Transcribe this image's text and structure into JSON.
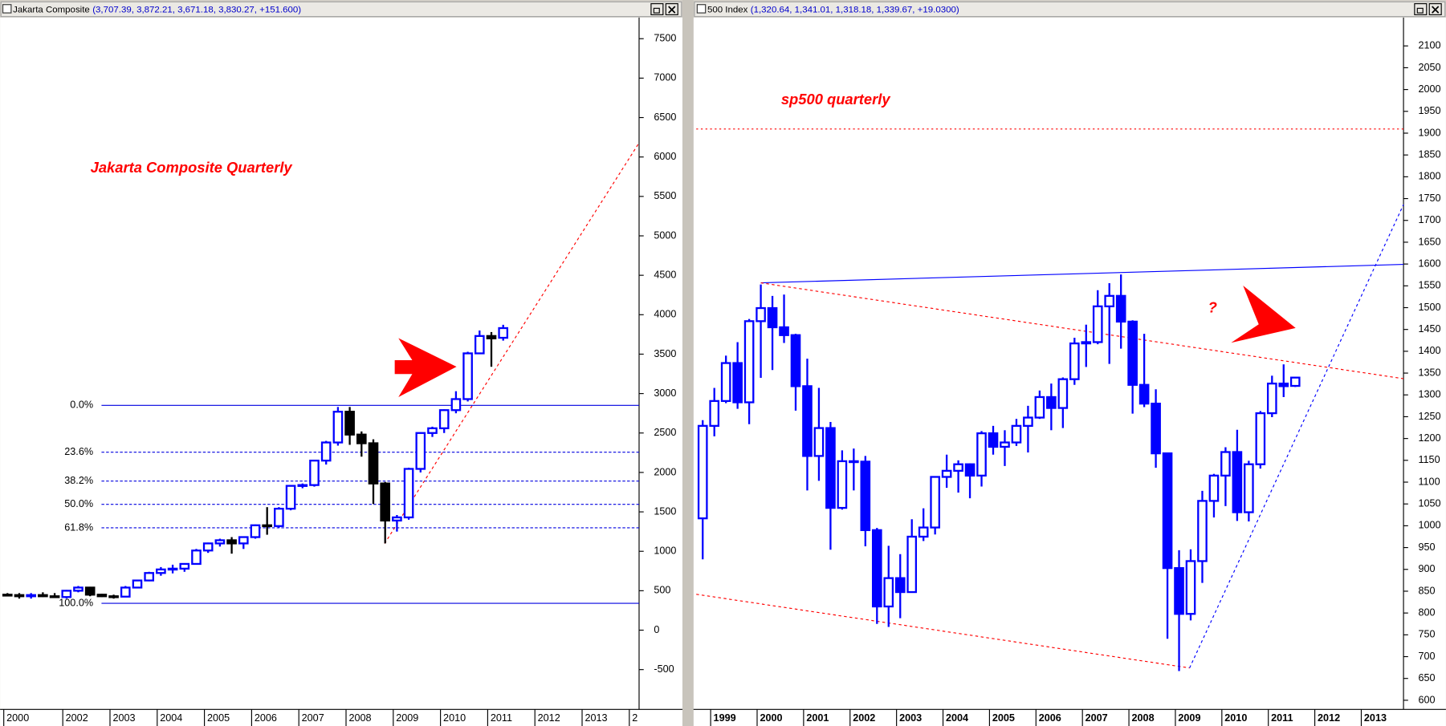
{
  "chart_data": [
    {
      "type": "candlestick",
      "name": "Jakarta Composite",
      "quote": "(3,707.39, 3,872.21, 3,671.18, 3,830.27, +151.600)",
      "annotations": [
        "Jakarta Composite Quarterly"
      ],
      "categories": [
        "2000",
        null,
        null,
        null,
        null,
        "2002",
        null,
        null,
        null,
        "2003",
        null,
        null,
        null,
        "2004",
        null,
        null,
        null,
        "2005",
        null,
        null,
        null,
        "2006",
        null,
        null,
        null,
        "2007",
        null,
        null,
        null,
        "2008",
        null,
        null,
        null,
        "2009",
        null,
        null,
        null,
        "2010",
        null,
        null,
        null,
        "2011",
        null,
        null,
        null,
        "2012",
        null,
        null,
        null,
        "2013",
        null,
        null,
        null,
        "2"
      ],
      "open": [
        450,
        445,
        430,
        445,
        430,
        420,
        500,
        540,
        450,
        430,
        425,
        540,
        630,
        725,
        770,
        780,
        840,
        1010,
        1100,
        1140,
        1100,
        1180,
        1330,
        1320,
        1540,
        1830,
        1840,
        2150,
        2380,
        2770,
        2480,
        2370,
        1860,
        1390,
        1430,
        2045,
        2500,
        2560,
        2790,
        2930,
        3510,
        3730,
        3707.39,
        null,
        null,
        null,
        null,
        null,
        null,
        null,
        null,
        null,
        null,
        null
      ],
      "high": [
        470,
        470,
        470,
        480,
        470,
        510,
        560,
        550,
        460,
        450,
        560,
        640,
        740,
        800,
        830,
        850,
        1030,
        1110,
        1160,
        1180,
        1190,
        1340,
        1560,
        1560,
        1840,
        1860,
        2160,
        2400,
        2830,
        2830,
        2520,
        2420,
        1880,
        1460,
        2060,
        2510,
        2580,
        2800,
        3030,
        3530,
        3800,
        3780,
        3872.21,
        null,
        null,
        null,
        null,
        null,
        null,
        null,
        null,
        null,
        null,
        null
      ],
      "low": [
        430,
        400,
        400,
        420,
        410,
        400,
        480,
        430,
        420,
        400,
        420,
        530,
        620,
        690,
        720,
        740,
        830,
        980,
        1060,
        970,
        1030,
        1160,
        1210,
        1300,
        1520,
        1800,
        1820,
        2100,
        2340,
        2350,
        2200,
        1600,
        1100,
        1250,
        1400,
        2000,
        2450,
        2500,
        2750,
        2900,
        3500,
        3340,
        3671.18,
        null,
        null,
        null,
        null,
        null,
        null,
        null,
        null,
        null,
        null,
        null
      ],
      "close": [
        445,
        430,
        445,
        430,
        420,
        500,
        540,
        450,
        430,
        425,
        540,
        630,
        725,
        770,
        780,
        840,
        1010,
        1100,
        1140,
        1100,
        1180,
        1330,
        1320,
        1540,
        1830,
        1840,
        2150,
        2380,
        2770,
        2480,
        2370,
        1860,
        1390,
        1430,
        2045,
        2500,
        2560,
        2790,
        2930,
        3510,
        3730,
        3700,
        3830.27,
        null,
        null,
        null,
        null,
        null,
        null,
        null,
        null,
        null,
        null,
        null
      ],
      "up_fill": "#ffffff",
      "up_stroke": "#0000ff",
      "down_fill": "#000000",
      "down_stroke": "#000000",
      "ylim": [
        -1005,
        7757
      ],
      "yticks": [
        7500,
        7000,
        6500,
        6000,
        5500,
        5000,
        4500,
        4000,
        3500,
        3000,
        2500,
        2000,
        1500,
        1000,
        500,
        0,
        -500
      ],
      "fib_levels": [
        {
          "name": "0.0%",
          "value": 2850,
          "style": "solid"
        },
        {
          "name": "23.6%",
          "value": 2257,
          "style": "dashed"
        },
        {
          "name": "38.2%",
          "value": 1890,
          "style": "dashed"
        },
        {
          "name": "50.0%",
          "value": 1595,
          "style": "dashed"
        },
        {
          "name": "61.8%",
          "value": 1298,
          "style": "dashed"
        },
        {
          "name": "100.0%",
          "value": 340,
          "style": "solid"
        }
      ],
      "fib_color": "#0000e0"
    },
    {
      "type": "candlestick",
      "name": "500 Index",
      "quote": "(1,320.64, 1,341.01, 1,318.18, 1,339.67, +19.0300)",
      "annotations": [
        "sp500 quarterly",
        "?"
      ],
      "categories": [
        null,
        "1999",
        null,
        null,
        null,
        "2000",
        null,
        null,
        null,
        "2001",
        null,
        null,
        null,
        "2002",
        null,
        null,
        null,
        "2003",
        null,
        null,
        null,
        "2004",
        null,
        null,
        null,
        "2005",
        null,
        null,
        null,
        "2006",
        null,
        null,
        null,
        "2007",
        null,
        null,
        null,
        "2008",
        null,
        null,
        null,
        "2009",
        null,
        null,
        null,
        "2010",
        null,
        null,
        null,
        "2011",
        null,
        null,
        null,
        "2012",
        null,
        null,
        null,
        "2013",
        null,
        null
      ],
      "open": [
        1017,
        1229,
        1286,
        1373,
        1283,
        1469,
        1499,
        1455,
        1437,
        1320,
        1160,
        1224,
        1041,
        1148,
        1147,
        990,
        815,
        880,
        848,
        975,
        996,
        1112,
        1126,
        1141,
        1115,
        1212,
        1181,
        1191,
        1229,
        1248,
        1295,
        1270,
        1336,
        1418,
        1421,
        1503,
        1527,
        1468,
        1323,
        1280,
        1166,
        903,
        798,
        919,
        1057,
        1115,
        1169,
        1031,
        1141,
        1258,
        1326,
        1320.64,
        null,
        null,
        null,
        null,
        null,
        null,
        null,
        null
      ],
      "high": [
        1242,
        1316,
        1390,
        1421,
        1474,
        1553,
        1527,
        1530,
        1440,
        1383,
        1316,
        1238,
        1173,
        1177,
        1160,
        995,
        954,
        935,
        1015,
        1040,
        1112,
        1163,
        1150,
        1143,
        1217,
        1229,
        1219,
        1245,
        1275,
        1310,
        1326,
        1340,
        1431,
        1461,
        1540,
        1556,
        1576,
        1471,
        1440,
        1313,
        1167,
        944,
        946,
        1080,
        1119,
        1180,
        1220,
        1149,
        1263,
        1344,
        1370,
        1341.01,
        null,
        null,
        null,
        null,
        null,
        null,
        null,
        null
      ],
      "low": [
        923,
        1205,
        1281,
        1268,
        1233,
        1339,
        1357,
        1419,
        1264,
        1081,
        1103,
        945,
        1037,
        1081,
        953,
        775,
        768,
        788,
        848,
        965,
        980,
        1087,
        1076,
        1063,
        1090,
        1163,
        1137,
        1183,
        1168,
        1245,
        1219,
        1224,
        1323,
        1364,
        1416,
        1371,
        1406,
        1257,
        1272,
        1133,
        741,
        667,
        783,
        869,
        1019,
        1045,
        1011,
        1010,
        1131,
        1249,
        1295,
        1318.18,
        null,
        null,
        null,
        null,
        null,
        null,
        null,
        null
      ],
      "close": [
        1229,
        1286,
        1373,
        1283,
        1469,
        1499,
        1455,
        1437,
        1320,
        1160,
        1224,
        1041,
        1148,
        1147,
        990,
        815,
        880,
        848,
        975,
        996,
        1112,
        1126,
        1141,
        1115,
        1212,
        1181,
        1191,
        1229,
        1248,
        1295,
        1270,
        1336,
        1418,
        1421,
        1503,
        1527,
        1468,
        1323,
        1280,
        1166,
        903,
        798,
        919,
        1057,
        1115,
        1169,
        1031,
        1141,
        1258,
        1326,
        1320,
        1339.67,
        null,
        null,
        null,
        null,
        null,
        null,
        null,
        null
      ],
      "up_fill": "#ffffff",
      "up_stroke": "#0000ff",
      "down_fill": "#0000ff",
      "down_stroke": "#0000ff",
      "ylim": [
        579,
        2163
      ],
      "yticks": [
        2100,
        2050,
        2000,
        1950,
        1900,
        1850,
        1800,
        1750,
        1700,
        1650,
        1600,
        1550,
        1500,
        1450,
        1400,
        1350,
        1300,
        1250,
        1200,
        1150,
        1100,
        1050,
        1000,
        950,
        900,
        850,
        800,
        750,
        700,
        650,
        600
      ]
    }
  ]
}
